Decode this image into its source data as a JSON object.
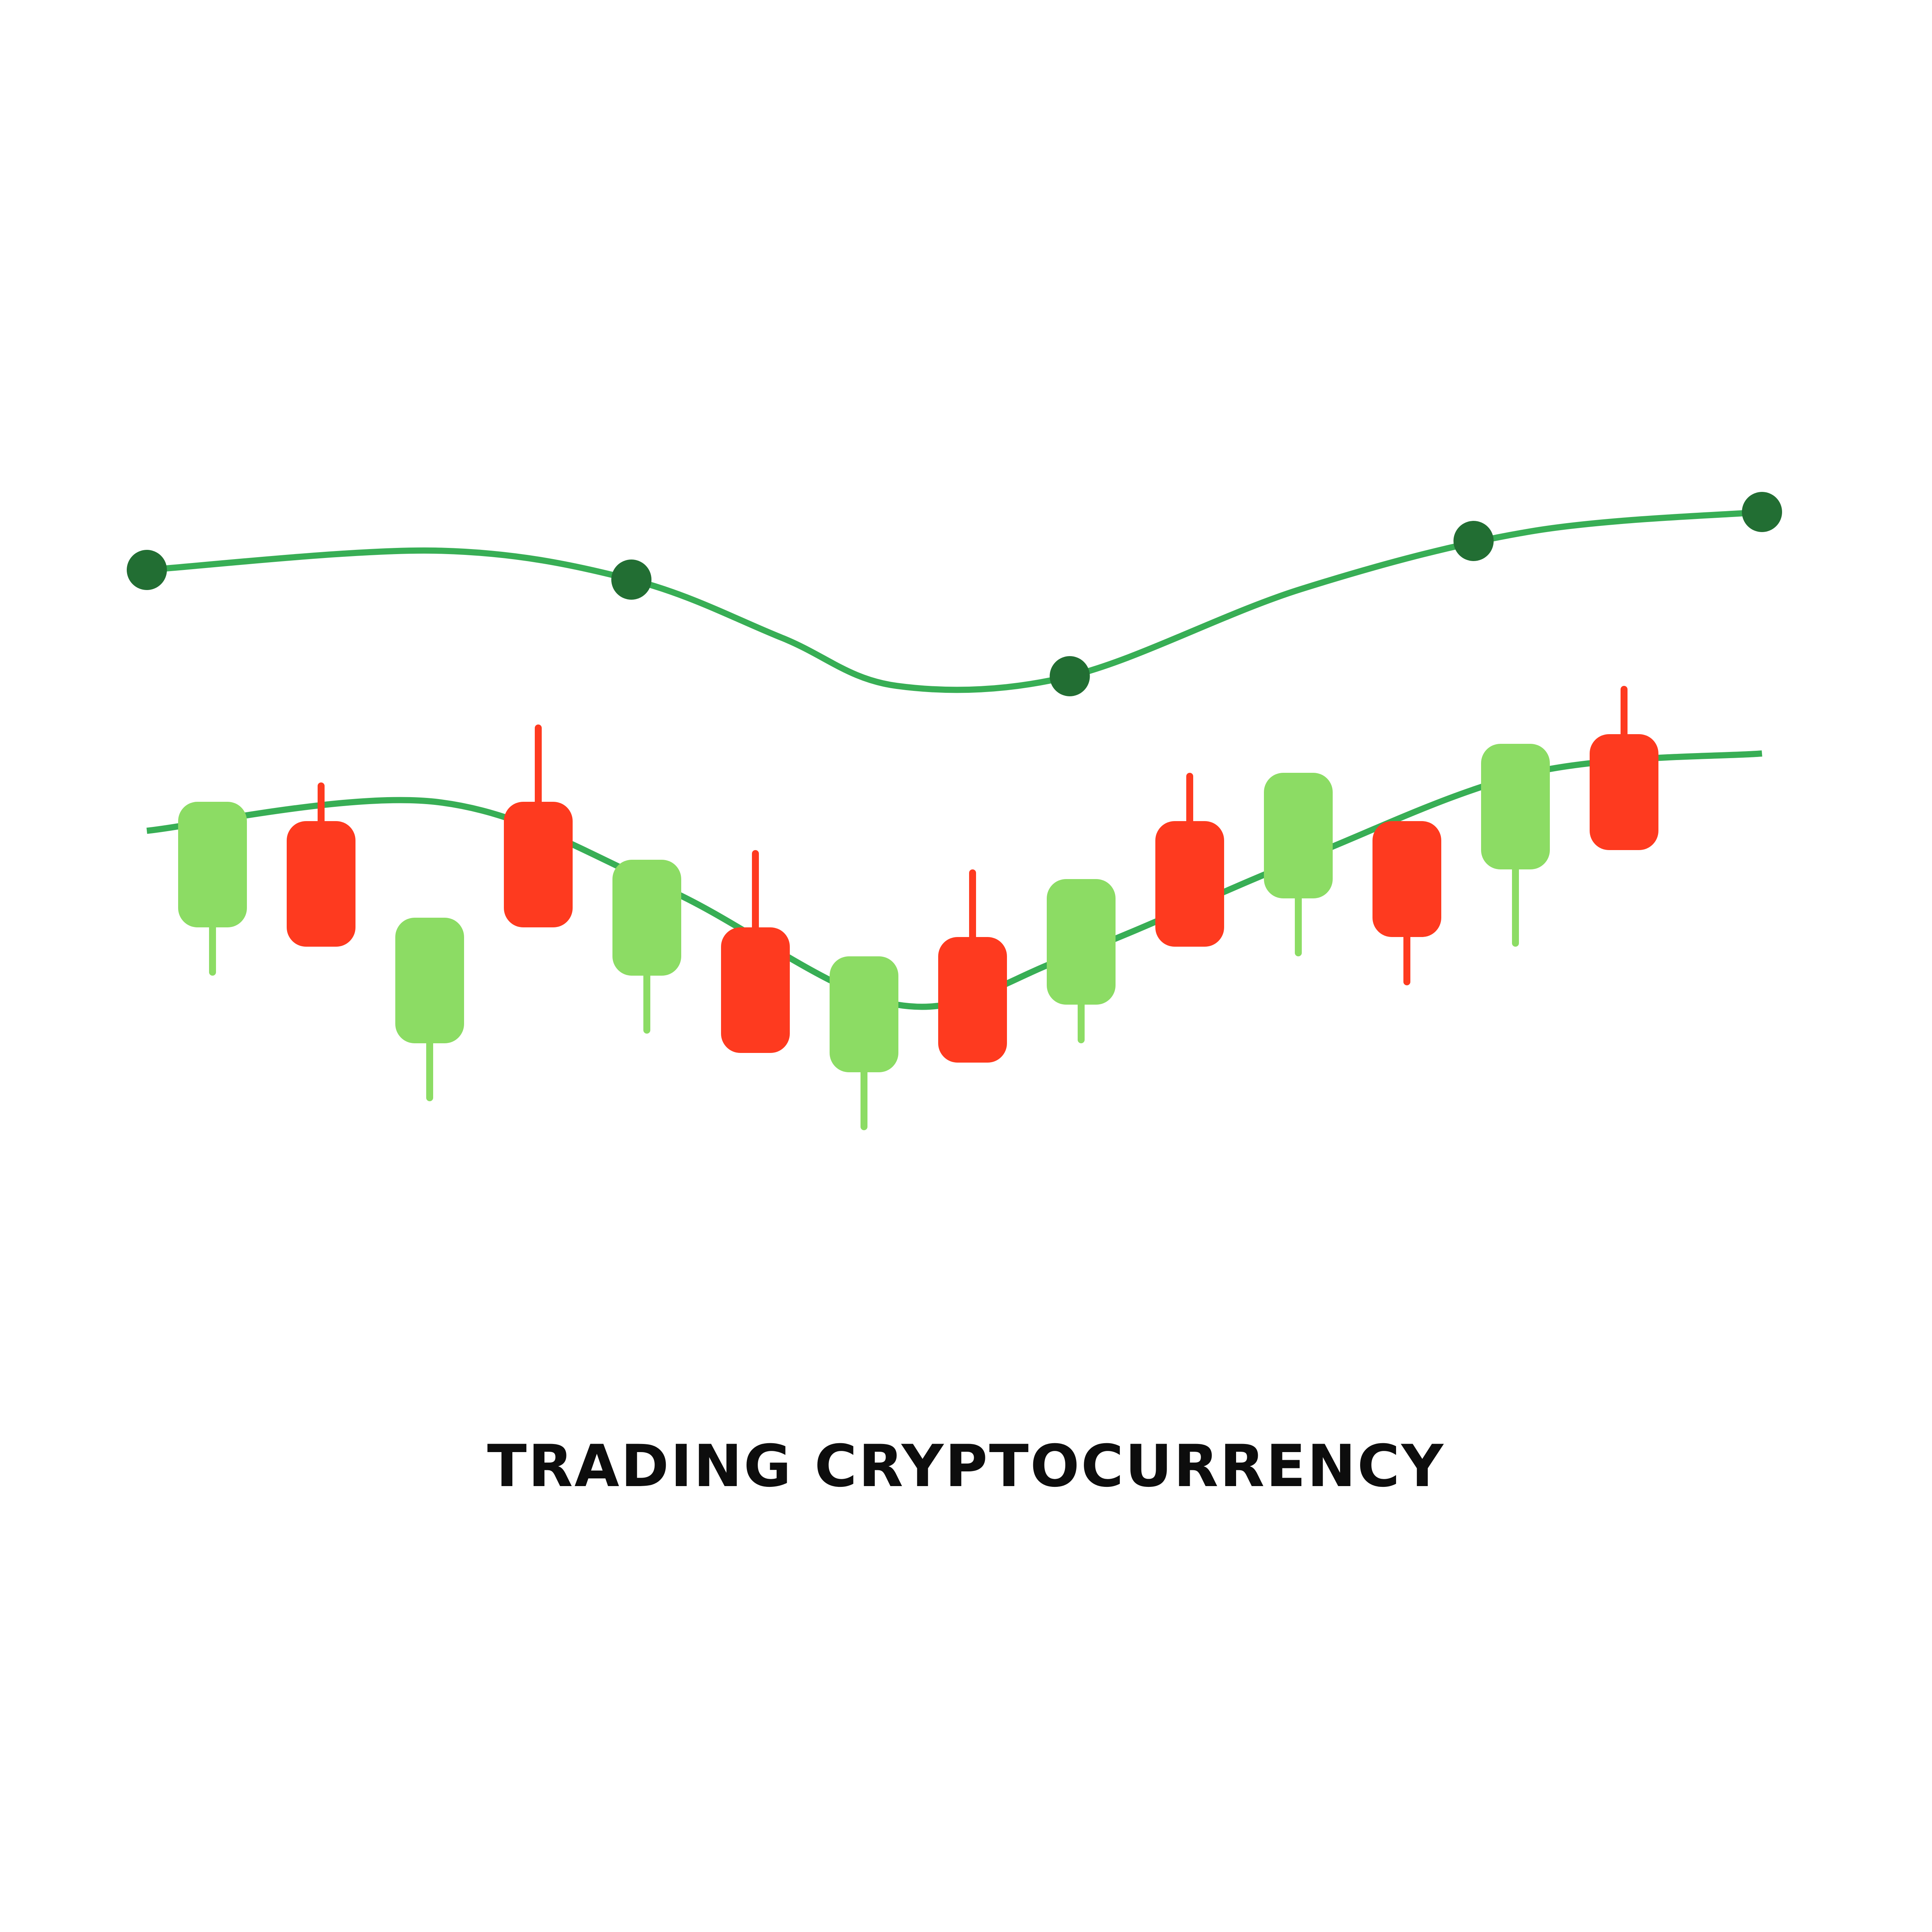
{
  "chart_data": {
    "type": "candlestick",
    "title": "TRADING CRYPTOCURRENCY",
    "xlabel": "",
    "ylabel": "",
    "axes_visible": false,
    "grid": false,
    "legend": "none",
    "ylim": [
      0,
      100
    ],
    "candles": [
      {
        "open": 56,
        "close": 69,
        "high": 69,
        "low": 51,
        "direction": "up"
      },
      {
        "open": 67,
        "close": 54,
        "high": 71,
        "low": 54,
        "direction": "down"
      },
      {
        "open": 44,
        "close": 57,
        "high": 57,
        "low": 38,
        "direction": "up"
      },
      {
        "open": 69,
        "close": 56,
        "high": 77,
        "low": 56,
        "direction": "down"
      },
      {
        "open": 51,
        "close": 63,
        "high": 63,
        "low": 45,
        "direction": "up"
      },
      {
        "open": 56,
        "close": 43,
        "high": 64,
        "low": 43,
        "direction": "down"
      },
      {
        "open": 41,
        "close": 53,
        "high": 53,
        "low": 35,
        "direction": "up"
      },
      {
        "open": 55,
        "close": 42,
        "high": 62,
        "low": 42,
        "direction": "down"
      },
      {
        "open": 48,
        "close": 61,
        "high": 61,
        "low": 44,
        "direction": "up"
      },
      {
        "open": 67,
        "close": 54,
        "high": 72,
        "low": 54,
        "direction": "down"
      },
      {
        "open": 59,
        "close": 72,
        "high": 72,
        "low": 53,
        "direction": "up"
      },
      {
        "open": 67,
        "close": 55,
        "high": 67,
        "low": 50,
        "direction": "down"
      },
      {
        "open": 62,
        "close": 75,
        "high": 75,
        "low": 54,
        "direction": "up"
      },
      {
        "open": 76,
        "close": 64,
        "high": 81,
        "low": 64,
        "direction": "down"
      }
    ],
    "series": [
      {
        "type": "line",
        "points": [
          {
            "x": 0,
            "y": 66
          },
          {
            "x": 2.5,
            "y": 69
          },
          {
            "x": 4.5,
            "y": 60
          },
          {
            "x": 6.5,
            "y": 48
          },
          {
            "x": 8,
            "y": 53
          },
          {
            "x": 10,
            "y": 63
          },
          {
            "x": 12,
            "y": 72
          },
          {
            "x": 14,
            "y": 74
          }
        ]
      },
      {
        "type": "line_with_markers",
        "points": [
          {
            "x": 0,
            "y": 93
          },
          {
            "x": 2.5,
            "y": 95
          },
          {
            "x": 4.2,
            "y": 92
          },
          {
            "x": 5.5,
            "y": 86
          },
          {
            "x": 6.5,
            "y": 81
          },
          {
            "x": 8,
            "y": 82
          },
          {
            "x": 10,
            "y": 91
          },
          {
            "x": 12,
            "y": 97
          },
          {
            "x": 14,
            "y": 99
          }
        ],
        "markers": [
          {
            "x": 0,
            "y": 93
          },
          {
            "x": 4.2,
            "y": 92
          },
          {
            "x": 8,
            "y": 82
          },
          {
            "x": 11.5,
            "y": 96
          },
          {
            "x": 14,
            "y": 99
          }
        ]
      }
    ],
    "colors": {
      "up": "#8cdc64",
      "down": "#fe3a1f",
      "line": "#38ae55",
      "marker": "#226e33"
    }
  }
}
